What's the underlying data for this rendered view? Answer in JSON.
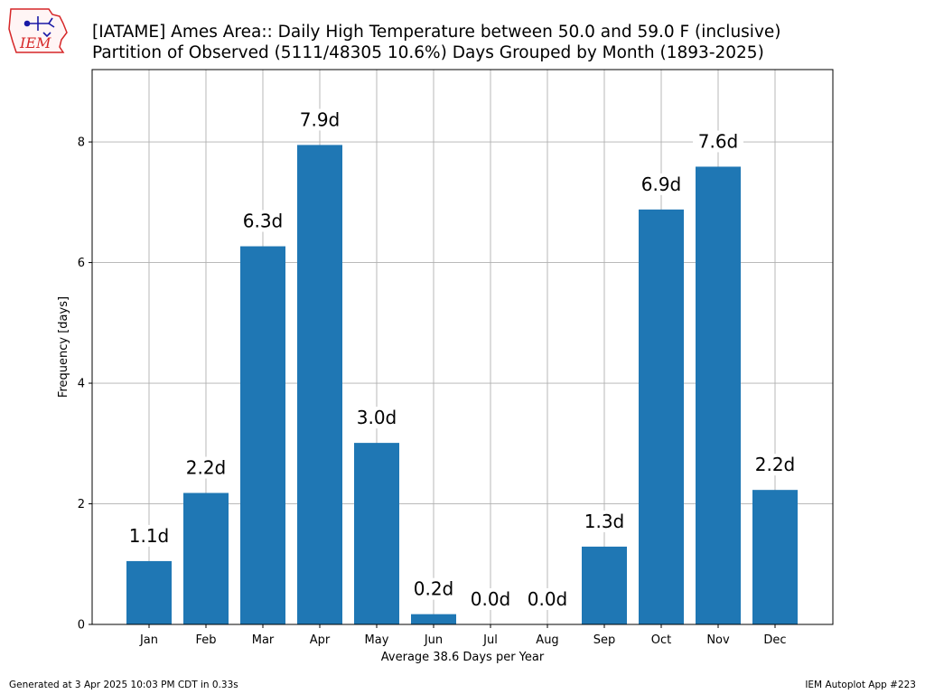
{
  "header": {
    "title_line1": "[IATAME] Ames Area:: Daily High Temperature between 50.0 and 59.0 F (inclusive)",
    "title_line2": "Partition of Observed (5111/48305 10.6%) Days Grouped by Month (1893-2025)",
    "logo_text": "IEM"
  },
  "footer": {
    "left": "Generated at 3 Apr 2025 10:03 PM CDT in 0.33s",
    "right": "IEM Autoplot App #223"
  },
  "colors": {
    "bar": "#1f77b4",
    "grid": "#b0b0b0",
    "logo_red": "#d62728",
    "logo_blue": "#1a1aa6"
  },
  "chart_data": {
    "type": "bar",
    "categories": [
      "Jan",
      "Feb",
      "Mar",
      "Apr",
      "May",
      "Jun",
      "Jul",
      "Aug",
      "Sep",
      "Oct",
      "Nov",
      "Dec"
    ],
    "values": [
      1.05,
      2.18,
      6.27,
      7.95,
      3.01,
      0.17,
      0.0,
      0.0,
      1.29,
      6.88,
      7.59,
      2.23
    ],
    "data_labels": [
      "1.1d",
      "2.2d",
      "6.3d",
      "7.9d",
      "3.0d",
      "0.2d",
      "0.0d",
      "0.0d",
      "1.3d",
      "6.9d",
      "7.6d",
      "2.2d"
    ],
    "xlabel": "Average 38.6 Days per Year",
    "ylabel": "Frequency [days]",
    "ylim": [
      0,
      9.2
    ],
    "yticks": [
      0,
      2,
      4,
      6,
      8
    ],
    "grid": true
  }
}
